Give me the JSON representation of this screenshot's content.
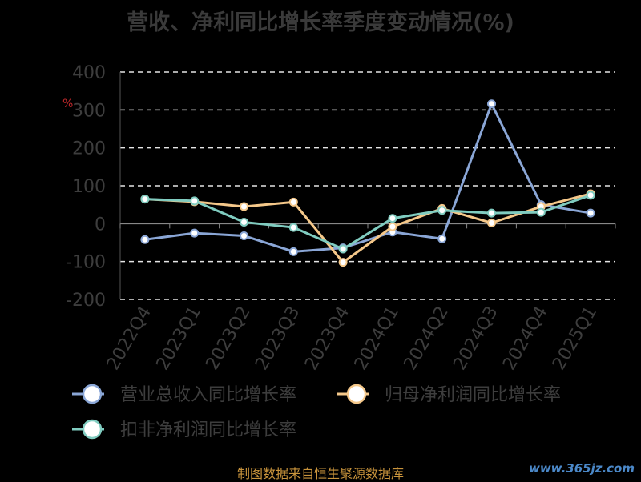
{
  "source_note": "制图数据来自恒生聚源数据库",
  "watermark": "www.365jz.com",
  "chart_data": {
    "type": "line",
    "title": "营收、净利同比增长率季度变动情况(%)",
    "xlabel": "",
    "ylabel": "",
    "ylim": [
      -200,
      400
    ],
    "yticks": [
      400,
      300,
      200,
      100,
      0,
      -100,
      -200
    ],
    "grid": true,
    "legend_placement": "bottom",
    "categories": [
      "2022Q4",
      "2023Q1",
      "2023Q2",
      "2023Q3",
      "2023Q4",
      "2024Q1",
      "2024Q2",
      "2024Q3",
      "2024Q4",
      "2025Q1"
    ],
    "series": [
      {
        "name": "营业总收入同比增长率",
        "color": "#8aa6d6",
        "values": [
          -42,
          -25,
          -32,
          -74,
          -64,
          -22,
          -40,
          316,
          50,
          28
        ]
      },
      {
        "name": "归母净利润同比增长率",
        "color": "#f5c88a",
        "values": [
          65,
          58,
          45,
          57,
          -102,
          -8,
          40,
          2,
          45,
          79
        ]
      },
      {
        "name": "扣非净利润同比增长率",
        "color": "#80ccc0",
        "values": [
          65,
          60,
          4,
          -10,
          -67,
          14,
          35,
          28,
          30,
          75
        ]
      }
    ]
  }
}
